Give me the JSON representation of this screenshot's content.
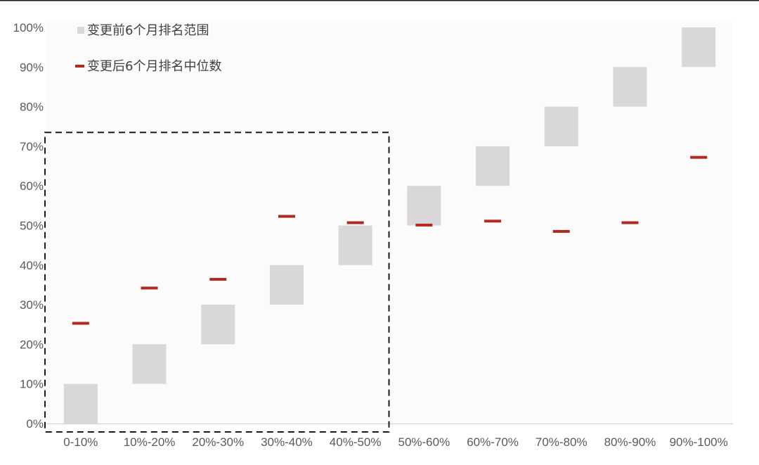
{
  "chart_data": {
    "type": "floating-range-with-median-markers",
    "categories": [
      "0-10%",
      "10%-20%",
      "20%-30%",
      "30%-40%",
      "40%-50%",
      "50%-60%",
      "60%-70%",
      "70%-80%",
      "80%-90%",
      "90%-100%"
    ],
    "series": [
      {
        "name": "变更前6个月排名范围",
        "kind": "range-box",
        "low": [
          0,
          10,
          20,
          30,
          40,
          50,
          60,
          70,
          80,
          90
        ],
        "high": [
          10,
          20,
          30,
          40,
          50,
          60,
          70,
          80,
          90,
          100
        ],
        "color": "#d9d7da"
      },
      {
        "name": "变更后6个月排名中位数",
        "kind": "dash-marker",
        "values": [
          25.3,
          34.2,
          36.4,
          52.3,
          50.7,
          50.1,
          51.1,
          48.5,
          50.7,
          67.2
        ],
        "color": "#b22a1d"
      }
    ],
    "ylim": [
      0,
      100
    ],
    "yticks": [
      "0%",
      "10%",
      "20%",
      "30%",
      "40%",
      "50%",
      "60%",
      "70%",
      "80%",
      "90%",
      "100%"
    ],
    "grid": false,
    "legend_position": "top-left",
    "highlight": {
      "style": "dashed-box",
      "from_category": "0-10%",
      "to_category": "40%-50%",
      "y_top": 73.5
    }
  }
}
